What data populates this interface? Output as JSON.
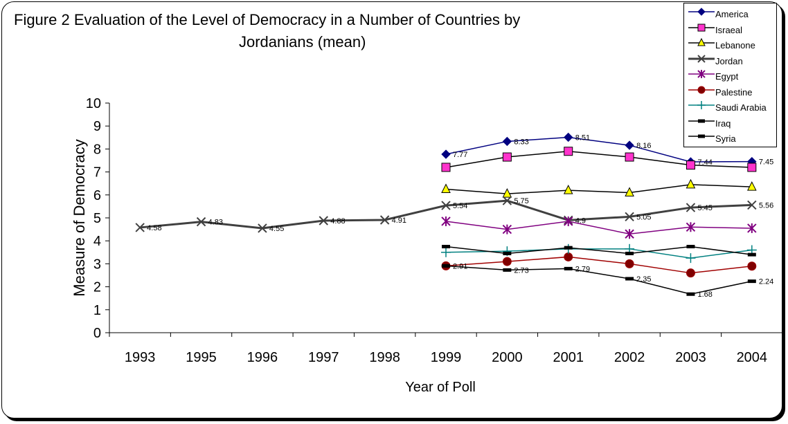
{
  "title_line1": "Figure 2 Evaluation of the Level of Democracy in a Number of Countries by",
  "title_line2": "Jordanians (mean)",
  "chart_data": {
    "type": "line",
    "title": "Figure 2 Evaluation of the Level of Democracy in a Number of Countries by Jordanians (mean)",
    "xlabel": "Year of Poll",
    "ylabel": "Measure of Democracy",
    "ylim": [
      0,
      10
    ],
    "yticks": [
      0,
      1,
      2,
      3,
      4,
      5,
      6,
      7,
      8,
      9,
      10
    ],
    "categories": [
      "1993",
      "1995",
      "1996",
      "1997",
      "1998",
      "1999",
      "2000",
      "2001",
      "2002",
      "2003",
      "2004"
    ],
    "grid": false,
    "legend_position": "top-right",
    "series": [
      {
        "name": "America",
        "color": "#000080",
        "marker": "diamond",
        "labels": true,
        "values": [
          null,
          null,
          null,
          null,
          null,
          7.77,
          8.33,
          8.51,
          8.16,
          7.44,
          7.45
        ]
      },
      {
        "name": "Israeal",
        "color": "#000000",
        "marker": "square",
        "fill": "#ff33cc",
        "labels": false,
        "values": [
          null,
          null,
          null,
          null,
          null,
          7.2,
          7.65,
          7.9,
          7.65,
          7.3,
          7.2
        ]
      },
      {
        "name": "Lebanone",
        "color": "#000000",
        "marker": "triangle",
        "fill": "#ffff00",
        "labels": false,
        "values": [
          null,
          null,
          null,
          null,
          null,
          6.25,
          6.05,
          6.2,
          6.1,
          6.45,
          6.35
        ]
      },
      {
        "name": "Jordan",
        "color": "#404040",
        "marker": "x",
        "width": 3,
        "labels": true,
        "values": [
          4.58,
          4.83,
          4.55,
          4.88,
          4.91,
          5.54,
          5.75,
          4.9,
          5.05,
          5.45,
          5.56
        ]
      },
      {
        "name": "Egypt",
        "color": "#800080",
        "marker": "star",
        "labels": false,
        "values": [
          null,
          null,
          null,
          null,
          null,
          4.85,
          4.5,
          4.85,
          4.3,
          4.6,
          4.55
        ]
      },
      {
        "name": "Palestine",
        "color": "#a00000",
        "marker": "circle",
        "fill": "#800000",
        "labels": false,
        "values": [
          null,
          null,
          null,
          null,
          null,
          2.91,
          3.1,
          3.3,
          3.0,
          2.6,
          2.9
        ]
      },
      {
        "name": "Saudi Arabia",
        "color": "#008080",
        "marker": "plus",
        "labels": false,
        "values": [
          null,
          null,
          null,
          null,
          null,
          3.5,
          3.55,
          3.65,
          3.65,
          3.25,
          3.6
        ]
      },
      {
        "name": "Iraq",
        "color": "#000000",
        "marker": "dash",
        "labels": true,
        "values": [
          null,
          null,
          null,
          null,
          null,
          2.91,
          2.73,
          2.79,
          2.35,
          1.68,
          2.24
        ]
      },
      {
        "name": "Syria",
        "color": "#000000",
        "marker": "dash",
        "labels": false,
        "values": [
          null,
          null,
          null,
          null,
          null,
          3.75,
          3.45,
          3.7,
          3.45,
          3.75,
          3.4
        ]
      }
    ]
  }
}
